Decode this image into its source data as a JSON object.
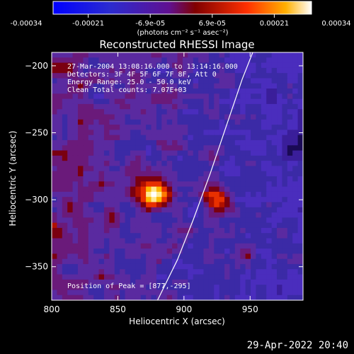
{
  "colorbar": {
    "tick_labels": [
      "-0.00034",
      "-0.00021",
      "-6.9e-05",
      "6.9e-05",
      "0.00021",
      "0.00034"
    ],
    "unit_label": "(photons cm⁻² s⁻¹ asec⁻²)"
  },
  "chart_data": {
    "type": "heatmap",
    "title": "Reconstructed RHESSI Image",
    "xlabel": "Heliocentric X (arcsec)",
    "ylabel": "Heliocentric Y (arcsec)",
    "xlim": [
      800,
      990
    ],
    "ylim": [
      -375,
      -190
    ],
    "x_ticks": [
      800,
      850,
      900,
      950
    ],
    "y_ticks": [
      -200,
      -250,
      -300,
      -350
    ],
    "x_tick_labels": [
      "800",
      "850",
      "900",
      "950"
    ],
    "y_tick_labels": [
      "−200",
      "−250",
      "−300",
      "−350"
    ],
    "peak_position": [
      877,
      -295
    ],
    "info_lines": [
      "27-Mar-2004 13:08:16.000 to 13:14:16.000",
      "Detectors: 3F 4F 5F 6F 7F 8F, Att 0",
      "Energy Range: 25.0 - 50.0 keV",
      "Clean     Total counts: 7.07E+03"
    ],
    "peak_label": "Position of Peak = [877,-295]",
    "limb_curve": [
      [
        880,
        -375
      ],
      [
        895,
        -345
      ],
      [
        907,
        -315
      ],
      [
        920,
        -280
      ],
      [
        932,
        -245
      ],
      [
        944,
        -210
      ],
      [
        952,
        -190
      ]
    ]
  },
  "footer": {
    "timestamp": "29-Apr-2022 20:40"
  }
}
